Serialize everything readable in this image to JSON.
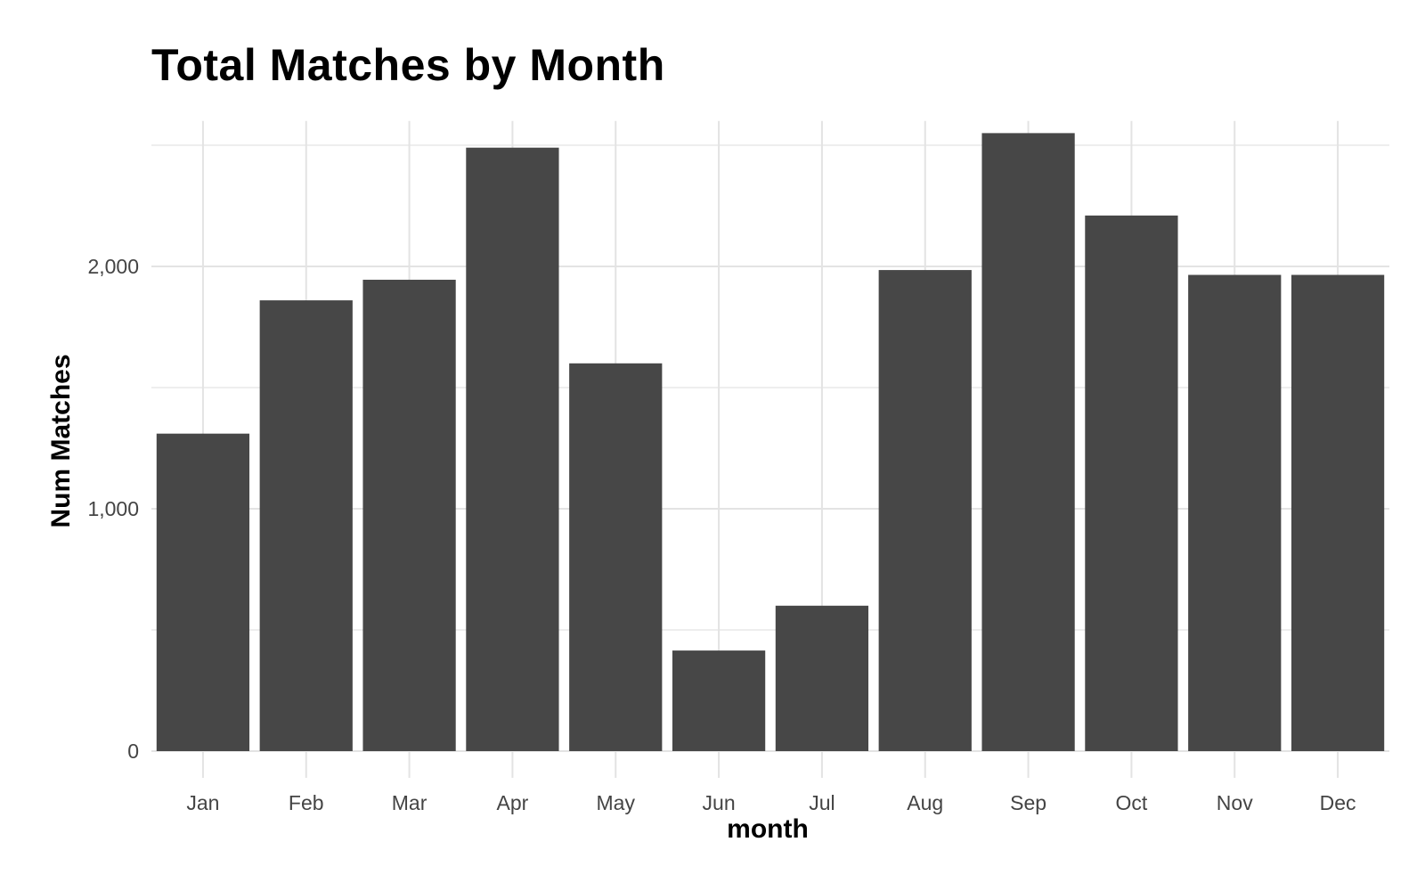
{
  "chart_data": {
    "type": "bar",
    "title": "Total Matches by Month",
    "xlabel": "month",
    "ylabel": "Num Matches",
    "categories": [
      "Jan",
      "Feb",
      "Mar",
      "Apr",
      "May",
      "Jun",
      "Jul",
      "Aug",
      "Sep",
      "Oct",
      "Nov",
      "Dec"
    ],
    "values": [
      1310,
      1860,
      1945,
      2490,
      1600,
      415,
      600,
      1985,
      2550,
      2210,
      1965,
      1965
    ],
    "ylim": [
      0,
      2600
    ],
    "yticks": [
      0,
      1000,
      2000
    ],
    "ytick_labels": [
      "0",
      "1,000",
      "2,000"
    ],
    "grid": true,
    "legend": "none",
    "colors": {
      "bar": "#474747",
      "grid": "#e3e3e3"
    }
  }
}
